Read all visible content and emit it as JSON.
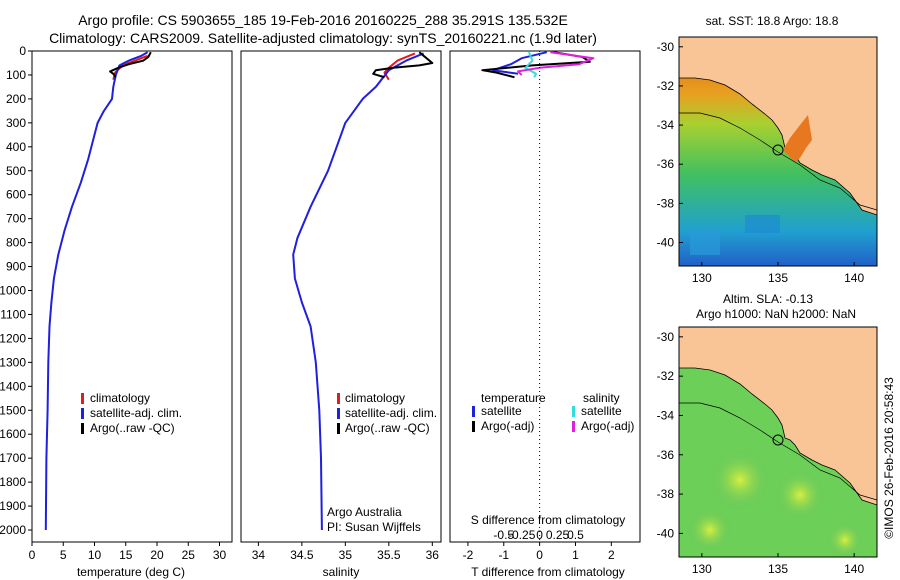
{
  "header": {
    "line1": "Argo profile: CS 5903655_185 19-Feb-2016 20160225_288 35.291S 135.532E",
    "line2": "Climatology: CARS2009. Satellite-adjusted climatology: synTS_20160221.nc (1.9d later)"
  },
  "colors": {
    "climatology": "#e41a1c",
    "satellite": "#1f1fe0",
    "argo": "#000000",
    "sal_satellite": "#33dddd",
    "sal_argo": "#e020e0",
    "land": "#f9c596"
  },
  "credits": {
    "org": "Argo Australia",
    "pi": "PI: Susan Wijffels",
    "side": "©IMOS 26-Feb-2016 20:58:43"
  },
  "maps": {
    "sst_title": "sat. SST: 18.8 Argo: 18.8",
    "sla_title1": "Altim. SLA: -0.13",
    "sla_title2": "Argo h1000: NaN h2000: NaN",
    "xticks": [
      "130",
      "135",
      "140"
    ],
    "yticks": [
      "-30",
      "-32",
      "-34",
      "-36",
      "-38",
      "-40"
    ],
    "argo_lon": 135.532,
    "argo_lat": -35.291
  },
  "chart_data": [
    {
      "type": "line",
      "panel": "temperature",
      "xlabel": "temperature (deg C)",
      "xlim": [
        0,
        32
      ],
      "ylim": [
        0,
        2050
      ],
      "xticks": [
        "0",
        "5",
        "10",
        "15",
        "20",
        "25",
        "30"
      ],
      "yticks": [
        "0",
        "100",
        "200",
        "300",
        "400",
        "500",
        "600",
        "700",
        "800",
        "900",
        "1000",
        "1100",
        "1200",
        "1300",
        "1400",
        "1500",
        "1600",
        "1700",
        "1800",
        "1900",
        "2000"
      ],
      "legend": [
        "climatology",
        "satellite-adj. clim.",
        "Argo(..raw -QC)"
      ],
      "series": [
        {
          "name": "climatology",
          "x": [
            18.5,
            16.5,
            14.5,
            13.3,
            13.0
          ],
          "y": [
            20,
            40,
            60,
            90,
            120
          ]
        },
        {
          "name": "satellite-adj. clim.",
          "x": [
            18.5,
            17.5,
            15.5,
            14.0,
            13.4,
            13.0,
            12.8,
            11.5,
            10.5,
            10.0,
            9.5,
            9.0,
            7.8,
            6.4,
            5.2,
            4.2,
            3.5,
            3.1,
            2.8,
            2.6,
            2.5,
            2.3,
            2.2
          ],
          "y": [
            5,
            20,
            40,
            60,
            100,
            150,
            200,
            250,
            300,
            350,
            400,
            450,
            550,
            650,
            750,
            850,
            950,
            1050,
            1150,
            1300,
            1500,
            1700,
            2000
          ]
        },
        {
          "name": "Argo(..raw -QC)",
          "x": [
            19.0,
            18.6,
            17.8,
            15.5,
            13.8,
            12.5,
            13.0,
            13.4
          ],
          "y": [
            5,
            25,
            40,
            55,
            70,
            85,
            95,
            110
          ]
        }
      ]
    },
    {
      "type": "line",
      "panel": "salinity",
      "xlabel": "salinity",
      "xlim": [
        33.8,
        36.1
      ],
      "ylim": [
        0,
        2050
      ],
      "xticks": [
        "34",
        "34.5",
        "35",
        "35.5",
        "36"
      ],
      "legend": [
        "climatology",
        "satellite-adj. clim.",
        "Argo(..raw -QC)"
      ],
      "series": [
        {
          "name": "climatology",
          "x": [
            35.8,
            35.6,
            35.5,
            35.45,
            35.5
          ],
          "y": [
            10,
            40,
            70,
            90,
            120
          ]
        },
        {
          "name": "satellite-adj. clim.",
          "x": [
            35.9,
            35.7,
            35.5,
            35.35,
            35.2,
            35.1,
            35.0,
            34.9,
            34.8,
            34.6,
            34.45,
            34.4,
            34.42,
            34.5,
            34.6,
            34.66,
            34.7,
            34.72,
            34.73
          ],
          "y": [
            10,
            40,
            80,
            150,
            200,
            250,
            300,
            400,
            500,
            650,
            780,
            850,
            950,
            1050,
            1150,
            1300,
            1500,
            1700,
            2000
          ]
        },
        {
          "name": "Argo(..raw -QC)",
          "x": [
            35.85,
            36.0,
            35.85,
            35.55,
            35.35,
            35.32,
            35.45
          ],
          "y": [
            5,
            50,
            60,
            70,
            80,
            95,
            110
          ]
        }
      ]
    },
    {
      "type": "line",
      "panel": "difference",
      "xlabel": "T difference from climatology",
      "xlabel_top": "S difference from climatology",
      "xlim": [
        -2.5,
        2.8
      ],
      "ylim": [
        0,
        2050
      ],
      "xticks": [
        "-2",
        "-1",
        "0",
        "1",
        "2"
      ],
      "s_ticks": [
        "-0.5",
        "-0.25",
        "0",
        "0.25",
        "0.5"
      ],
      "legend_headers": [
        "temperature",
        "salinity"
      ],
      "legend": [
        "satellite",
        "Argo(-adj)",
        "satellite",
        "Argo(-adj)"
      ],
      "series": [
        {
          "name": "T satellite",
          "x": [
            0.2,
            -0.5,
            -0.8,
            -1.3,
            -0.6
          ],
          "y": [
            5,
            30,
            55,
            80,
            95
          ]
        },
        {
          "name": "T Argo(-adj)",
          "x": [
            0.4,
            1.2,
            1.4,
            -0.2,
            -1.6,
            -1.2,
            -0.7
          ],
          "y": [
            5,
            25,
            45,
            60,
            80,
            90,
            110
          ]
        },
        {
          "name": "S satellite",
          "x": [
            -0.3,
            -0.2,
            -0.4,
            -0.1,
            -0.15
          ],
          "y": [
            5,
            40,
            70,
            95,
            110
          ]
        },
        {
          "name": "S Argo(-adj)",
          "x": [
            0.3,
            1.5,
            1.1,
            0.0,
            -0.6,
            -0.5
          ],
          "y": [
            5,
            30,
            55,
            70,
            85,
            100
          ]
        }
      ]
    }
  ]
}
